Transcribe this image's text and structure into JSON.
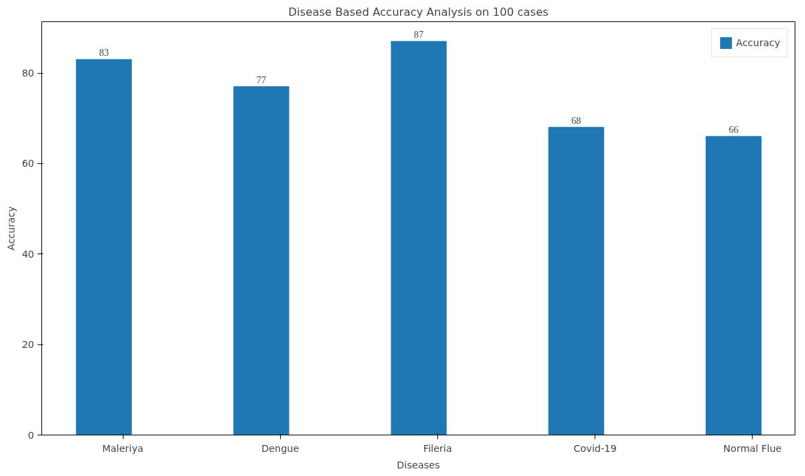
{
  "chart_data": {
    "type": "bar",
    "title": "Disease Based Accuracy Analysis on 100 cases",
    "xlabel": "Diseases",
    "ylabel": "Accuracy",
    "categories": [
      "Maleriya",
      "Dengue",
      "Fileria",
      "Covid-19",
      "Normal Flue"
    ],
    "series": [
      {
        "name": "Accuracy",
        "color": "#1f77b4",
        "values": [
          83,
          77,
          87,
          68,
          66
        ]
      }
    ],
    "ylim": [
      0,
      91.35
    ],
    "yticks": [
      0,
      20,
      40,
      60,
      80
    ],
    "data_labels": true,
    "legend": "top right",
    "grid": false
  }
}
